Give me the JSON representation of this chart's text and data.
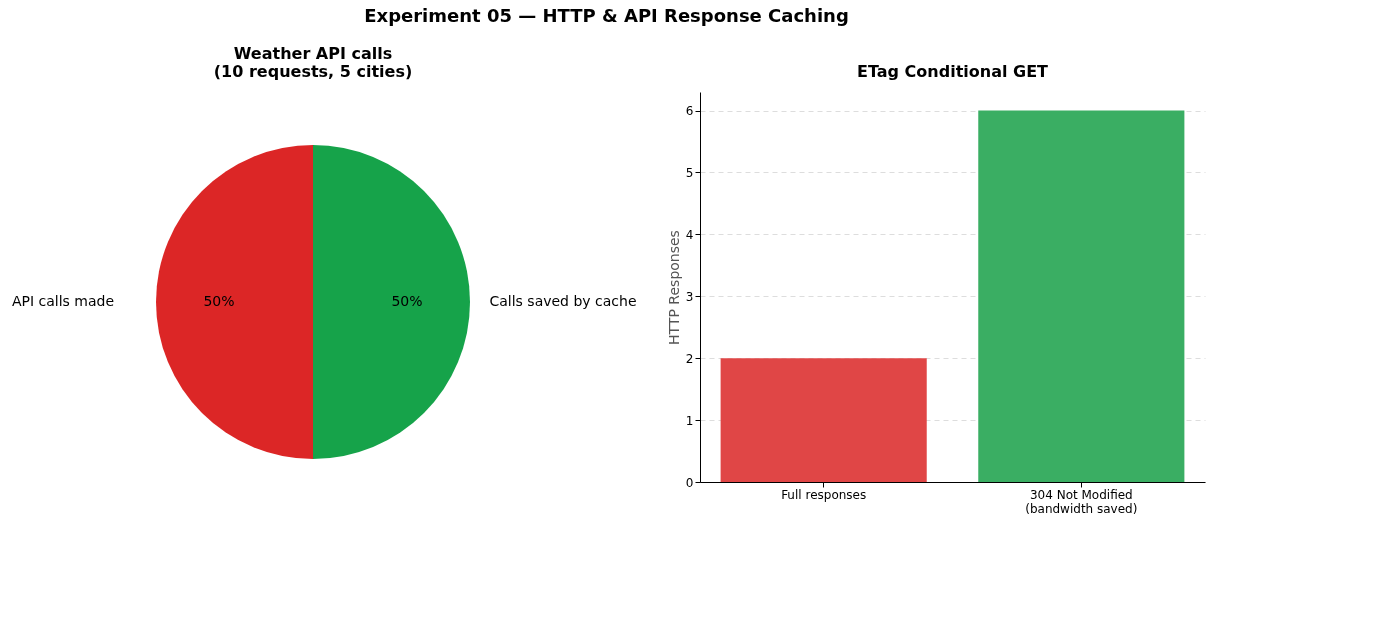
{
  "chart_data": [
    {
      "type": "pie",
      "annotations": [
        "Experiment 05 — HTTP & API Response Caching"
      ],
      "title": "Weather API calls\n(10 requests, 5 cities)",
      "categories": [
        "Calls saved by cache",
        "API calls made"
      ],
      "values": [
        50,
        50
      ],
      "colors": [
        "#16a34a",
        "#dc2626"
      ],
      "value_labels": [
        "50%",
        "50%"
      ]
    },
    {
      "type": "bar",
      "title": "ETag Conditional GET",
      "categories": [
        "Full responses",
        "304 Not Modified\n(bandwidth saved)"
      ],
      "values": [
        2,
        6
      ],
      "colors": [
        "#e04646",
        "#3aae63"
      ],
      "ylabel": "HTTP Responses",
      "ylim": [
        0,
        6.3
      ],
      "yticks": [
        0,
        1,
        2,
        3,
        4,
        5,
        6
      ],
      "grid": "y"
    }
  ]
}
